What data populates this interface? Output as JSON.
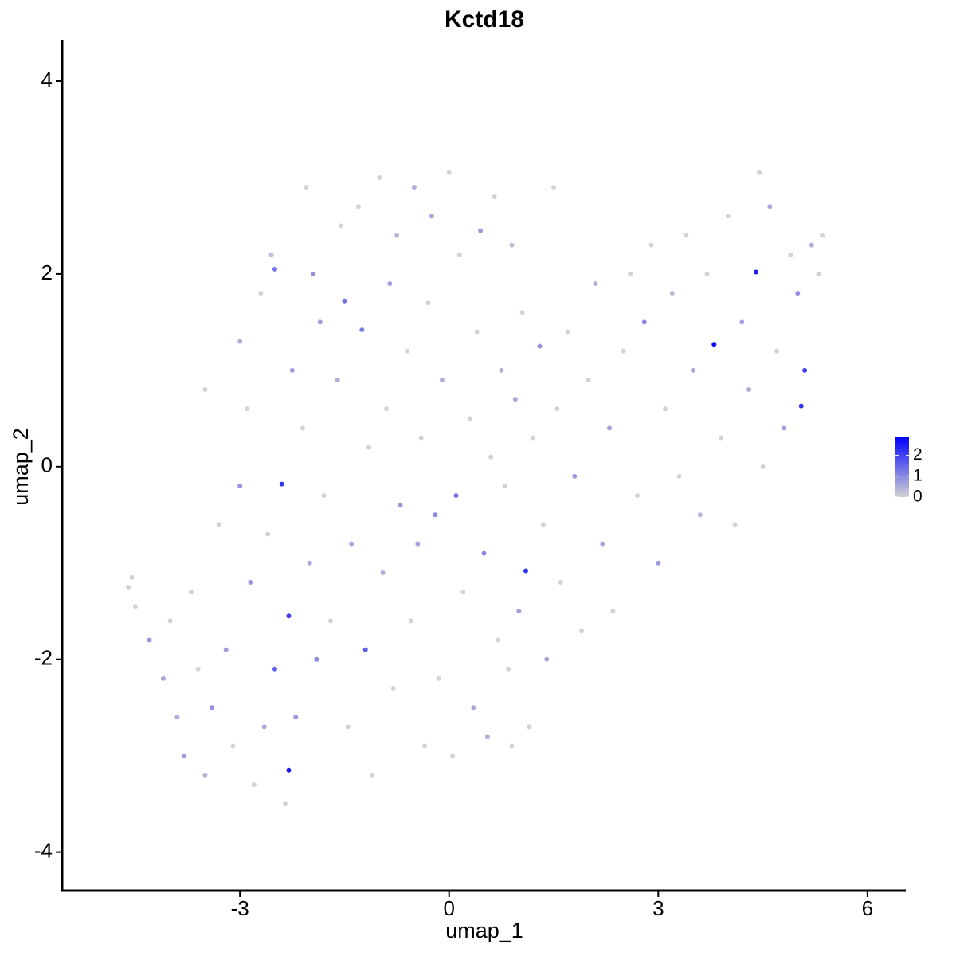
{
  "chart_data": {
    "type": "scatter",
    "title": "Kctd18",
    "x_label": "umap_1",
    "y_label": "umap_2",
    "xlim": [
      -5.55,
      6.55
    ],
    "xticks": [
      -3,
      0,
      3,
      6
    ],
    "ylim": [
      -4.4,
      4.43
    ],
    "yticks": [
      -4,
      -2,
      0,
      2,
      4
    ],
    "x": [
      -4.6,
      -4.55,
      -4.5,
      -4.3,
      -4.1,
      -4.0,
      -3.9,
      -3.8,
      -3.7,
      -3.6,
      -3.5,
      -3.4,
      -3.3,
      -3.2,
      -3.1,
      -3.0,
      -3.0,
      -2.9,
      -2.85,
      -2.8,
      -2.7,
      -2.65,
      -2.6,
      -2.55,
      -2.5,
      -2.5,
      -2.4,
      -2.35,
      -2.3,
      -2.3,
      -2.25,
      -2.2,
      -2.1,
      -2.05,
      -2.0,
      -1.95,
      -1.9,
      -1.85,
      -1.8,
      -1.7,
      -1.6,
      -1.55,
      -1.5,
      -1.45,
      -1.4,
      -1.3,
      -1.25,
      -1.2,
      -1.15,
      -1.1,
      -1.0,
      -0.95,
      -0.9,
      -0.85,
      -0.8,
      -0.75,
      -0.7,
      -0.6,
      -0.55,
      -0.5,
      -0.45,
      -0.4,
      -0.35,
      -0.3,
      -0.25,
      -0.2,
      -0.15,
      -0.1,
      0.0,
      0.05,
      0.1,
      0.15,
      0.2,
      0.3,
      0.35,
      0.4,
      0.45,
      0.5,
      0.55,
      0.6,
      0.65,
      0.7,
      0.75,
      0.8,
      0.85,
      0.9,
      0.95,
      1.0,
      1.05,
      1.1,
      1.15,
      1.2,
      1.3,
      1.35,
      1.4,
      1.5,
      1.55,
      1.6,
      1.7,
      1.8,
      1.9,
      2.0,
      2.1,
      2.2,
      2.3,
      2.35,
      2.5,
      2.6,
      2.7,
      2.8,
      2.9,
      3.0,
      3.1,
      3.2,
      3.3,
      3.4,
      3.5,
      3.6,
      3.7,
      3.8,
      3.9,
      4.0,
      4.1,
      4.2,
      4.3,
      4.4,
      4.45,
      4.5,
      4.6,
      4.7,
      4.8,
      4.9,
      5.0,
      5.1,
      5.05,
      5.2,
      5.3,
      5.35,
      0.9,
      -3.5
    ],
    "y": [
      -1.25,
      -1.15,
      -1.45,
      -1.8,
      -2.2,
      -1.6,
      -2.6,
      -3.0,
      -1.3,
      -2.1,
      -3.2,
      -2.5,
      -0.6,
      -1.9,
      -2.9,
      -0.2,
      1.3,
      0.6,
      -1.2,
      -3.3,
      1.8,
      -2.7,
      -0.7,
      2.2,
      2.05,
      -2.1,
      -0.18,
      -3.5,
      -1.55,
      -3.15,
      1.0,
      -2.6,
      0.4,
      2.9,
      -1.0,
      2.0,
      -2.0,
      1.5,
      -0.3,
      -1.6,
      0.9,
      2.5,
      1.72,
      -2.7,
      -0.8,
      2.7,
      1.42,
      -1.9,
      0.2,
      -3.2,
      3.0,
      -1.1,
      0.6,
      1.9,
      -2.3,
      2.4,
      -0.4,
      1.2,
      -1.6,
      2.9,
      -0.8,
      0.3,
      -2.9,
      1.7,
      2.6,
      -0.5,
      -2.2,
      0.9,
      3.05,
      -3.0,
      -0.3,
      2.2,
      -1.3,
      0.5,
      -2.5,
      1.4,
      2.45,
      -0.9,
      -2.8,
      0.1,
      2.8,
      -1.8,
      1.0,
      -0.2,
      -2.1,
      2.3,
      0.7,
      -1.5,
      1.6,
      -1.08,
      -2.7,
      0.3,
      1.25,
      -0.6,
      -2.0,
      2.9,
      0.6,
      -1.2,
      1.4,
      -0.1,
      -1.7,
      0.9,
      1.9,
      -0.8,
      0.4,
      -1.5,
      1.2,
      2.0,
      -0.3,
      1.5,
      2.3,
      -1.0,
      0.6,
      1.8,
      -0.1,
      2.4,
      1.0,
      -0.5,
      2.0,
      1.27,
      0.3,
      2.6,
      -0.6,
      1.5,
      0.8,
      2.02,
      3.05,
      0.0,
      2.7,
      1.2,
      0.4,
      2.2,
      1.8,
      1.0,
      0.63,
      2.3,
      2.0,
      2.4,
      -2.9,
      0.8
    ],
    "values": [
      0,
      0,
      0,
      0.8,
      0.6,
      0,
      0.5,
      0.7,
      0,
      0,
      0.4,
      0.9,
      0,
      0.7,
      0,
      0.9,
      0.5,
      0,
      0.8,
      0,
      0,
      0.6,
      0,
      0.3,
      1.3,
      1.6,
      2.2,
      0,
      2.0,
      2.6,
      0.7,
      0.8,
      0,
      0,
      0.6,
      0.9,
      1.0,
      0.7,
      0,
      0,
      0.5,
      0,
      1.3,
      0,
      0.6,
      0,
      1.2,
      1.6,
      0,
      0,
      0,
      0.5,
      0,
      0.7,
      0,
      0.4,
      0.8,
      0,
      0,
      0.5,
      0.7,
      0,
      0,
      0,
      0.6,
      1.0,
      0,
      0.5,
      0,
      0,
      1.3,
      0,
      0,
      0,
      0.6,
      0,
      0.8,
      1.0,
      0.5,
      0,
      0,
      0,
      0.4,
      0,
      0,
      0.3,
      0.6,
      0.7,
      0,
      2.2,
      0,
      0,
      0.9,
      0,
      0.6,
      0,
      0,
      0,
      0,
      0.8,
      0,
      0,
      0.5,
      0.6,
      0.7,
      0,
      0,
      0,
      0,
      1.0,
      0,
      0.8,
      0,
      0.3,
      0,
      0,
      0.6,
      0.4,
      0,
      2.8,
      0,
      0,
      0,
      0.7,
      0.5,
      2.5,
      0,
      0,
      0.6,
      0,
      0.7,
      0,
      0.9,
      2.0,
      2.2,
      0.5,
      0,
      0,
      0,
      0
    ],
    "colorbar": {
      "lim": [
        0,
        2.9
      ],
      "ticks": [
        0,
        1,
        2
      ],
      "low": "#d3d3d3",
      "high": "#0000ff"
    }
  }
}
